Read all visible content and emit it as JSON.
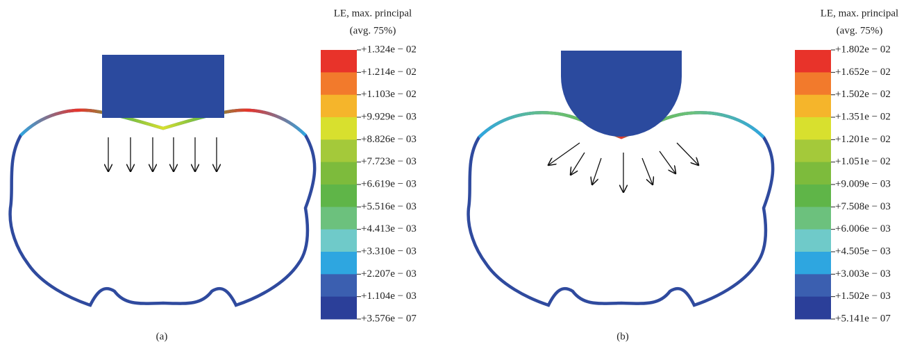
{
  "panels": [
    {
      "legend_title": "LE, max. principal",
      "legend_subtitle": "(avg. 75%)",
      "legend_labels": [
        "+1.324e − 02",
        "+1.214e − 02",
        "+1.103e − 02",
        "+9.929e − 03",
        "+8.826e − 03",
        "+7.723e − 03",
        "+6.619e − 03",
        "+5.516e − 03",
        "+4.413e − 03",
        "+3.310e − 03",
        "+2.207e − 03",
        "+1.104e − 03",
        "+3.576e − 07"
      ],
      "caption": "(a)"
    },
    {
      "legend_title": "LE, max. principal",
      "legend_subtitle": "(avg. 75%)",
      "legend_labels": [
        "+1.802e − 02",
        "+1.652e − 02",
        "+1.502e − 02",
        "+1.351e − 02",
        "+1.201e − 02",
        "+1.051e − 02",
        "+9.009e − 03",
        "+7.508e − 03",
        "+6.006e − 03",
        "+4.505e − 03",
        "+3.003e − 03",
        "+1.502e − 03",
        "+5.141e − 07"
      ],
      "caption": "(b)"
    }
  ]
}
